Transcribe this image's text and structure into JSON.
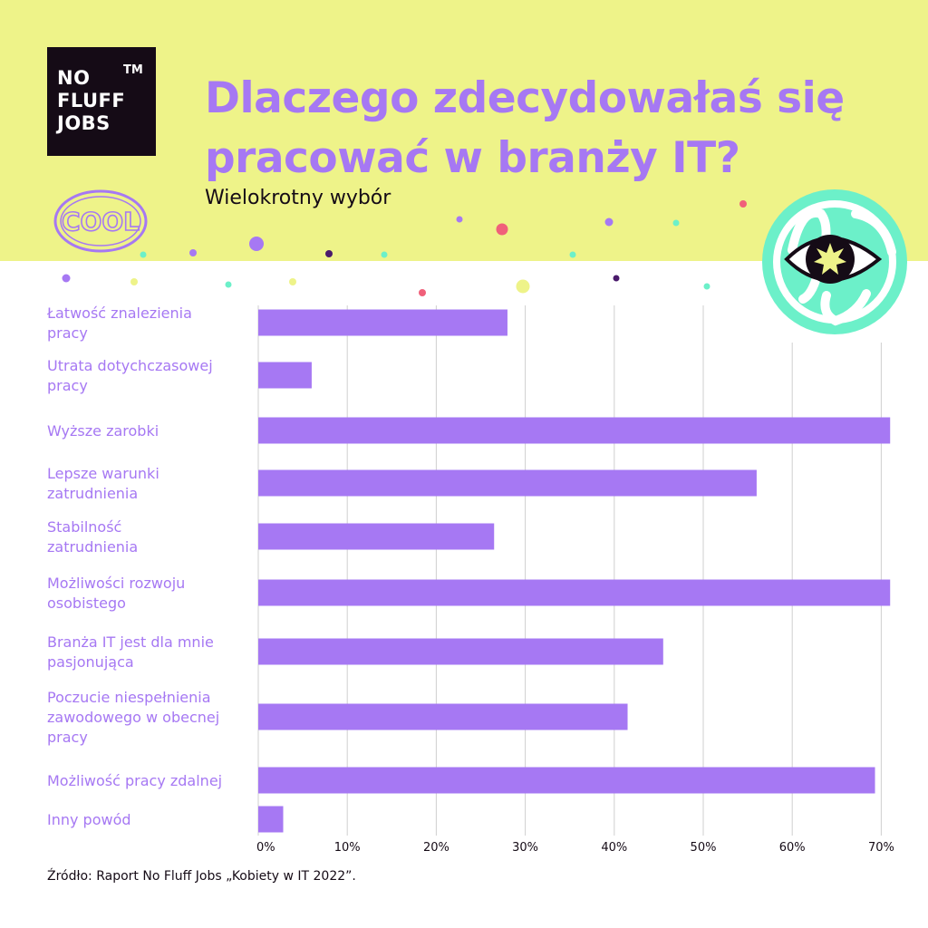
{
  "logo": {
    "lines": [
      "NO",
      "FLUFF",
      "JOBS"
    ],
    "tm": "TM"
  },
  "title": "Dlaczego zdecydowałaś się pracować w branży IT?",
  "subtitle": "Wielokrotny wybór",
  "badges": {
    "cool_text": "COOL",
    "eye_icon": "eye-icon"
  },
  "source": "Źródło: Raport No Fluff Jobs „Kobiety w IT 2022”.",
  "colors": {
    "header_bg": "#eef389",
    "accent": "#a678f3",
    "dark": "#150b16",
    "mint": "#6cf0c9",
    "grid": "#cfcfcf"
  },
  "chart_data": {
    "type": "bar",
    "orientation": "horizontal",
    "categories": [
      [
        "Łatwość znalezienia",
        "pracy"
      ],
      [
        "Utrata dotychczasowej",
        "pracy"
      ],
      [
        "Wyższe zarobki"
      ],
      [
        "Lepsze warunki",
        "zatrudnienia"
      ],
      [
        "Stabilność",
        "zatrudnienia"
      ],
      [
        "Możliwości rozwoju",
        "osobistego"
      ],
      [
        "Branża IT jest dla mnie",
        "pasjonująca"
      ],
      [
        "Poczucie niespełnienia",
        "zawodowego w obecnej",
        "pracy"
      ],
      [
        "Możliwość pracy zdalnej"
      ],
      [
        "Inny powód"
      ]
    ],
    "values": [
      28,
      6,
      71,
      56,
      26.5,
      71,
      45.5,
      41.5,
      69.3,
      2.8
    ],
    "xlim": [
      0,
      70
    ],
    "xticks": [
      "0%",
      "10%",
      "20%",
      "30%",
      "40%",
      "50%",
      "60%",
      "70%"
    ],
    "grid": true,
    "bar_color": "#a678f3"
  }
}
